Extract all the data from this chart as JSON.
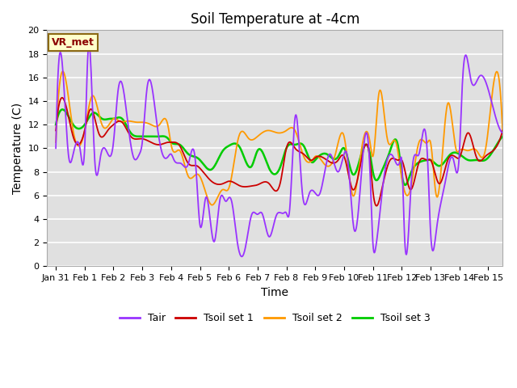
{
  "title": "Soil Temperature at -4cm",
  "xlabel": "Time",
  "ylabel": "Temperature (C)",
  "ylim": [
    0,
    20
  ],
  "xlim_days": [
    -0.3,
    15.5
  ],
  "annotation": "VR_met",
  "bg_color": "#e0e0e0",
  "fig_color": "#ffffff",
  "line_colors": {
    "Tair": "#9933FF",
    "Tsoil set 1": "#CC0000",
    "Tsoil set 2": "#FF9900",
    "Tsoil set 3": "#00CC00"
  },
  "line_widths": {
    "Tair": 1.3,
    "Tsoil set 1": 1.3,
    "Tsoil set 2": 1.3,
    "Tsoil set 3": 1.8
  },
  "xtick_positions": [
    0,
    1,
    2,
    3,
    4,
    5,
    6,
    7,
    8,
    9,
    10,
    11,
    12,
    13,
    14,
    15
  ],
  "xtick_labels": [
    "Jan 31",
    "Feb 1",
    "Feb 2",
    "Feb 3",
    "Feb 4",
    "Feb 5",
    "Feb 6",
    "Feb 7",
    "Feb 8",
    "Feb 9",
    "Feb 10",
    "Feb 11",
    "Feb 12",
    "Feb 13",
    "Feb 14",
    "Feb 15"
  ],
  "ytick_positions": [
    0,
    2,
    4,
    6,
    8,
    10,
    12,
    14,
    16,
    18,
    20
  ],
  "title_fontsize": 12,
  "axis_fontsize": 10,
  "tick_fontsize": 8,
  "legend_fontsize": 9,
  "annot_fontsize": 9
}
